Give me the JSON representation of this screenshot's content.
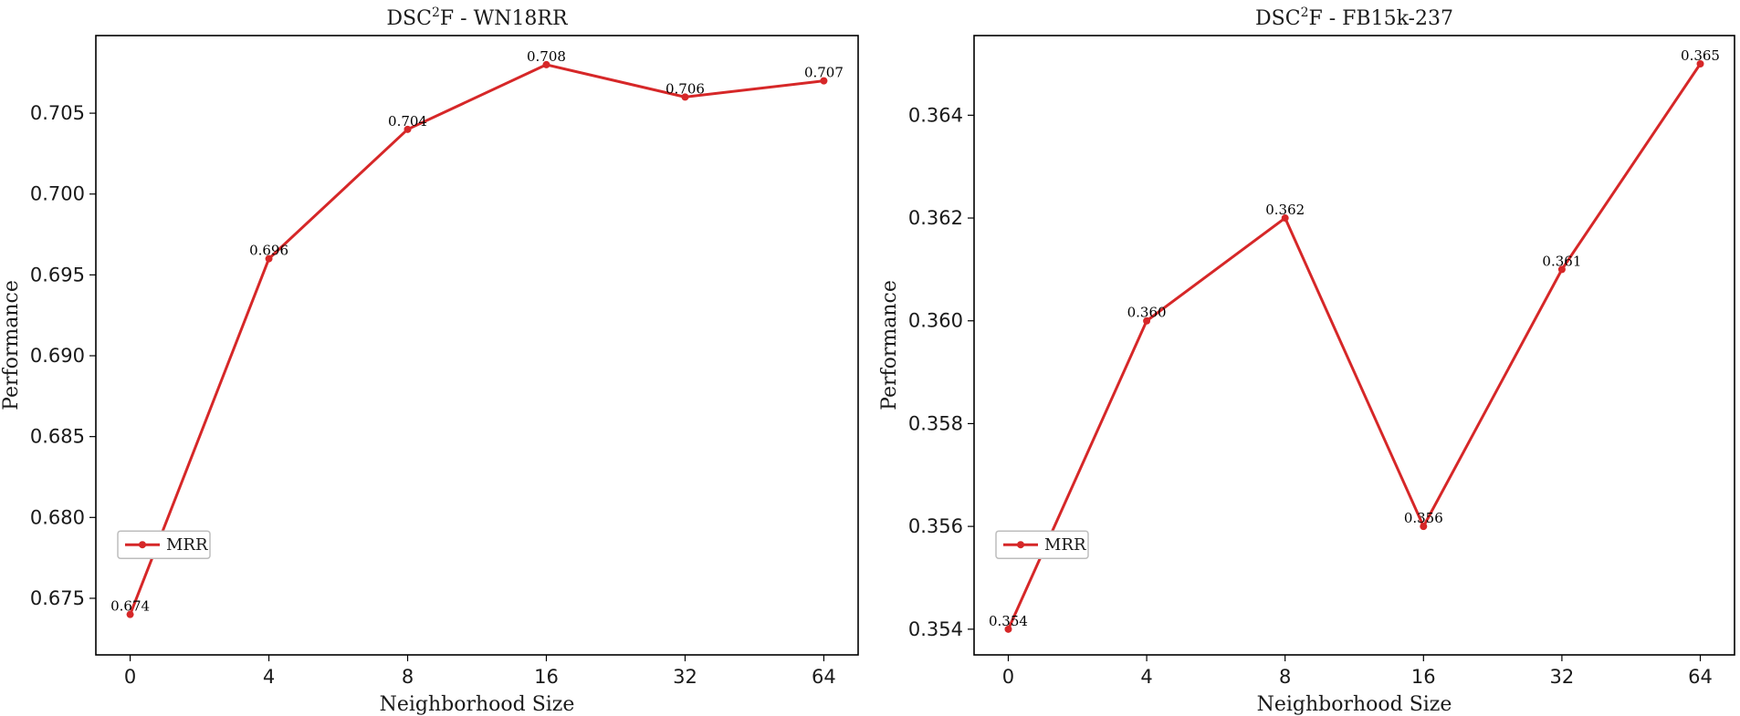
{
  "chart_data": [
    {
      "type": "line",
      "title_prefix": "DSC",
      "title_sup": "2",
      "title_suffix": "F - WN18RR",
      "xlabel": "Neighborhood Size",
      "ylabel": "Performance",
      "categories": [
        "0",
        "4",
        "8",
        "16",
        "32",
        "64"
      ],
      "ylim": [
        0.6715,
        0.7098
      ],
      "yticks": [
        0.675,
        0.68,
        0.685,
        0.69,
        0.695,
        0.7,
        0.705
      ],
      "ytick_labels": [
        "0.675",
        "0.680",
        "0.685",
        "0.690",
        "0.695",
        "0.700",
        "0.705"
      ],
      "grid": false,
      "legend_placement": "lower-left",
      "series": [
        {
          "name": "MRR",
          "color": "#d62728",
          "values": [
            0.674,
            0.696,
            0.704,
            0.708,
            0.706,
            0.707
          ],
          "labels": [
            "0.674",
            "0.696",
            "0.704",
            "0.708",
            "0.706",
            "0.707"
          ]
        }
      ]
    },
    {
      "type": "line",
      "title_prefix": "DSC",
      "title_sup": "2",
      "title_suffix": "F - FB15k-237",
      "xlabel": "Neighborhood Size",
      "ylabel": "Performance",
      "categories": [
        "0",
        "4",
        "8",
        "16",
        "32",
        "64"
      ],
      "ylim": [
        0.3535,
        0.36555
      ],
      "yticks": [
        0.354,
        0.356,
        0.358,
        0.36,
        0.362,
        0.364
      ],
      "ytick_labels": [
        "0.354",
        "0.356",
        "0.358",
        "0.360",
        "0.362",
        "0.364"
      ],
      "grid": false,
      "legend_placement": "lower-left",
      "series": [
        {
          "name": "MRR",
          "color": "#d62728",
          "values": [
            0.354,
            0.36,
            0.362,
            0.356,
            0.361,
            0.365
          ],
          "labels": [
            "0.354",
            "0.360",
            "0.362",
            "0.356",
            "0.361",
            "0.365"
          ]
        }
      ]
    }
  ]
}
